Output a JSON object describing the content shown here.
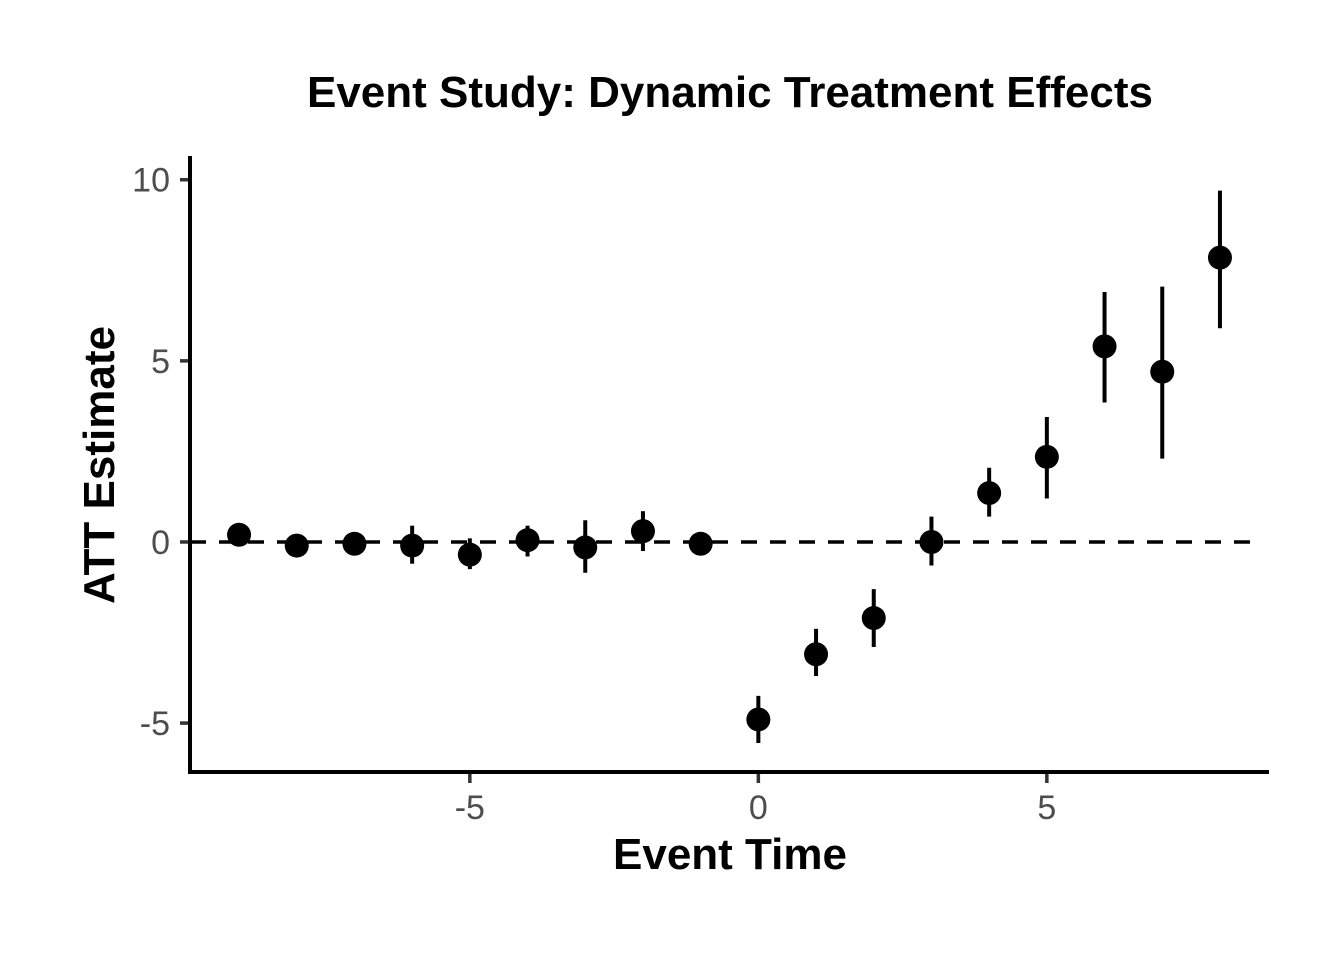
{
  "chart_data": {
    "type": "scatter",
    "subtype": "pointrange-event-study",
    "title": "Event Study: Dynamic Treatment Effects",
    "xlabel": "Event Time",
    "ylabel": "ATT Estimate",
    "grid": false,
    "legend": false,
    "xlim": [
      -9.85,
      8.85
    ],
    "ylim": [
      -6.35,
      10.6
    ],
    "x_ticks": [
      {
        "value": -5,
        "label": "-5"
      },
      {
        "value": 0,
        "label": "0"
      },
      {
        "value": 5,
        "label": "5"
      }
    ],
    "y_ticks": [
      {
        "value": 10,
        "label": "10"
      },
      {
        "value": 5,
        "label": "5"
      },
      {
        "value": 0,
        "label": "0"
      },
      {
        "value": -5,
        "label": "-5"
      }
    ],
    "reference_line": {
      "y": 0,
      "style": "dashed"
    },
    "points": [
      {
        "t": -9,
        "est": 0.2,
        "lo": -0.1,
        "hi": 0.5
      },
      {
        "t": -8,
        "est": -0.1,
        "lo": -0.4,
        "hi": 0.2
      },
      {
        "t": -7,
        "est": -0.05,
        "lo": -0.35,
        "hi": 0.25
      },
      {
        "t": -6,
        "est": -0.1,
        "lo": -0.6,
        "hi": 0.45
      },
      {
        "t": -5,
        "est": -0.35,
        "lo": -0.75,
        "hi": 0.1
      },
      {
        "t": -4,
        "est": 0.05,
        "lo": -0.4,
        "hi": 0.45
      },
      {
        "t": -3,
        "est": -0.15,
        "lo": -0.85,
        "hi": 0.6
      },
      {
        "t": -2,
        "est": 0.3,
        "lo": -0.25,
        "hi": 0.85
      },
      {
        "t": -1,
        "est": -0.05,
        "lo": -0.35,
        "hi": 0.25
      },
      {
        "t": 0,
        "est": -4.9,
        "lo": -5.55,
        "hi": -4.25
      },
      {
        "t": 1,
        "est": -3.1,
        "lo": -3.7,
        "hi": -2.4
      },
      {
        "t": 2,
        "est": -2.1,
        "lo": -2.9,
        "hi": -1.3
      },
      {
        "t": 3,
        "est": 0.0,
        "lo": -0.65,
        "hi": 0.7
      },
      {
        "t": 4,
        "est": 1.35,
        "lo": 0.7,
        "hi": 2.05
      },
      {
        "t": 5,
        "est": 2.35,
        "lo": 1.2,
        "hi": 3.45
      },
      {
        "t": 6,
        "est": 5.4,
        "lo": 3.85,
        "hi": 6.9
      },
      {
        "t": 7,
        "est": 4.7,
        "lo": 2.3,
        "hi": 7.05
      },
      {
        "t": 8,
        "est": 7.85,
        "lo": 5.9,
        "hi": 9.7
      }
    ],
    "colors": {
      "background": "#ffffff",
      "point": "#000000",
      "error_bar": "#000000",
      "reference_line": "#000000",
      "axis_line": "#000000",
      "tick_mark": "#333333",
      "tick_label": "#4d4d4d",
      "title": "#000000",
      "axis_label": "#000000"
    }
  }
}
